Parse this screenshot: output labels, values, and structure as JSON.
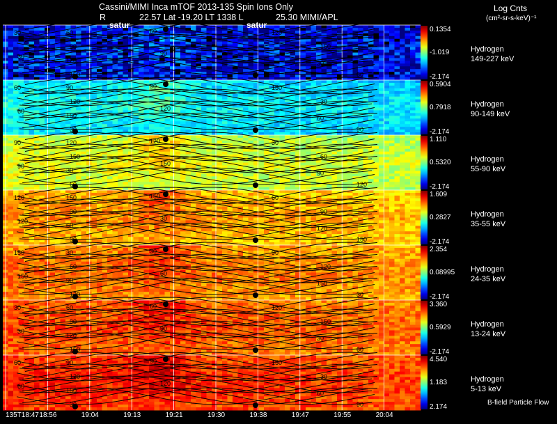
{
  "header": {
    "title": "Cassini/MIMI Inca mTOF  2013-135   Spin   Ions Only",
    "line2_r": "R",
    "line2_pos": "22.57 Lat -19.20 LT 1338 L",
    "line2_range": "25.30  MIMI/APL",
    "units_title": "Log Cnts",
    "units": "(cm²-sr-s-keV)⁻¹",
    "saturn_marks": [
      "satur",
      "satur"
    ]
  },
  "footer": {
    "bfield_label": "B-field Particle Flow"
  },
  "chart_data": {
    "type": "heatmap",
    "title": "Cassini/MIMI Inca mTOF  2013-135   Spin   Ions Only",
    "xlabel": "",
    "ylabel": "",
    "x_ticks": [
      "135T18:47",
      "18:56",
      "19:04",
      "19:13",
      "19:21",
      "19:30",
      "19:38",
      "19:47",
      "19:55",
      "20:04"
    ],
    "contour_labels": [
      "30",
      "60",
      "90",
      "120",
      "150"
    ],
    "panels": [
      {
        "species": "Hydrogen",
        "energy": "149-227 keV",
        "cbar_max": "0.1354",
        "cbar_mid": "-1.019",
        "cbar_min": "-2.174",
        "mean_level": 0.14
      },
      {
        "species": "Hydrogen",
        "energy": "90-149 keV",
        "cbar_max": "0.5904",
        "cbar_mid": "0.7918",
        "cbar_min": "-2.174",
        "mean_level": 0.4
      },
      {
        "species": "Hydrogen",
        "energy": "55-90 keV",
        "cbar_max": "1.110",
        "cbar_mid": "0.5320",
        "cbar_min": "-2.174",
        "mean_level": 0.62
      },
      {
        "species": "Hydrogen",
        "energy": "35-55 keV",
        "cbar_max": "1.609",
        "cbar_mid": "0.2827",
        "cbar_min": "-2.174",
        "mean_level": 0.74
      },
      {
        "species": "Hydrogen",
        "energy": "24-35 keV",
        "cbar_max": "2.354",
        "cbar_mid": "0.08995",
        "cbar_min": "-2.174",
        "mean_level": 0.78
      },
      {
        "species": "Hydrogen",
        "energy": "13-24 keV",
        "cbar_max": "3.360",
        "cbar_mid": "0.5929",
        "cbar_min": "-2.174",
        "mean_level": 0.82
      },
      {
        "species": "Hydrogen",
        "energy": "5-13 keV",
        "cbar_max": "4.540",
        "cbar_mid": "1.183",
        "cbar_min": "2.174",
        "mean_level": 0.86
      }
    ]
  }
}
